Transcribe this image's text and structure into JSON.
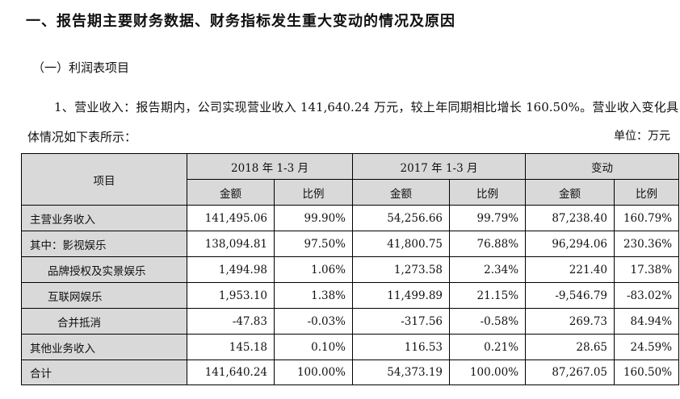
{
  "heading": "一、报告期主要财务数据、财务指标发生重大变动的情况及原因",
  "subheading": "（一）利润表项目",
  "paragraph": "1、营业收入：报告期内，公司实现营业收入 141,640.24 万元，较上年同期相比增长 160.50%。营业收入变化具体情况如下表所示：",
  "unit_note": "单位：万元",
  "table": {
    "header_item": "项目",
    "groups": [
      "2018 年 1-3 月",
      "2017 年 1-3 月",
      "变动"
    ],
    "subheaders": [
      "金额",
      "比例",
      "金额",
      "比例",
      "金额",
      "比例"
    ],
    "rows": [
      {
        "label": "主营业务收入",
        "indent": 0,
        "values": [
          "141,495.06",
          "99.90%",
          "54,256.66",
          "99.79%",
          "87,238.40",
          "160.79%"
        ]
      },
      {
        "label": "其中：影视娱乐",
        "indent": 0,
        "values": [
          "138,094.81",
          "97.50%",
          "41,800.75",
          "76.88%",
          "96,294.06",
          "230.36%"
        ]
      },
      {
        "label": "品牌授权及实景娱乐",
        "indent": 1,
        "values": [
          "1,494.98",
          "1.06%",
          "1,273.58",
          "2.34%",
          "221.40",
          "17.38%"
        ]
      },
      {
        "label": "互联网娱乐",
        "indent": 1,
        "values": [
          "1,953.10",
          "1.38%",
          "11,499.89",
          "21.15%",
          "-9,546.79",
          "-83.02%"
        ]
      },
      {
        "label": "合并抵消",
        "indent": 2,
        "values": [
          "-47.83",
          "-0.03%",
          "-317.56",
          "-0.58%",
          "269.73",
          "84.94%"
        ]
      },
      {
        "label": "其他业务收入",
        "indent": 0,
        "values": [
          "145.18",
          "0.10%",
          "116.53",
          "0.21%",
          "28.65",
          "24.59%"
        ]
      },
      {
        "label": "合计",
        "indent": 0,
        "values": [
          "141,640.24",
          "100.00%",
          "54,373.19",
          "100.00%",
          "87,267.05",
          "160.50%"
        ]
      }
    ]
  }
}
